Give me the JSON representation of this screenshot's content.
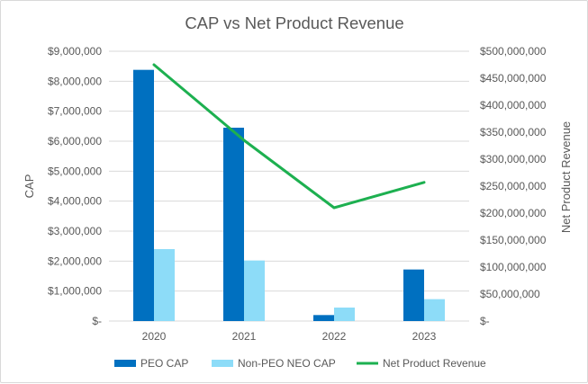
{
  "chart_data": {
    "type": "bar+line",
    "title": "CAP vs Net Product Revenue",
    "categories": [
      "2020",
      "2021",
      "2022",
      "2023"
    ],
    "ylabel_left": "CAP",
    "ylabel_right": "Net Product Revenue",
    "ylim_left": [
      0,
      9000000
    ],
    "ylim_right": [
      0,
      500000000
    ],
    "yticks_left": [
      "$-",
      "$1,000,000",
      "$2,000,000",
      "$3,000,000",
      "$4,000,000",
      "$5,000,000",
      "$6,000,000",
      "$7,000,000",
      "$8,000,000",
      "$9,000,000"
    ],
    "yticks_right": [
      "$-",
      "$50,000,000",
      "$100,000,000",
      "$150,000,000",
      "$200,000,000",
      "$250,000,000",
      "$300,000,000",
      "$350,000,000",
      "$400,000,000",
      "$450,000,000",
      "$500,000,000"
    ],
    "grid": true,
    "legend_position": "bottom",
    "series": [
      {
        "name": "PEO CAP",
        "type": "bar",
        "axis": "left",
        "color": "#0070c0",
        "values": [
          8380000,
          6450000,
          200000,
          1720000
        ]
      },
      {
        "name": "Non-PEO NEO CAP",
        "type": "bar",
        "axis": "left",
        "color": "#8ddcf8",
        "values": [
          2400000,
          2020000,
          450000,
          730000
        ]
      },
      {
        "name": "Net Product Revenue",
        "type": "line",
        "axis": "right",
        "color": "#1db050",
        "values": [
          475000000,
          335000000,
          210000000,
          257000000
        ]
      }
    ]
  }
}
